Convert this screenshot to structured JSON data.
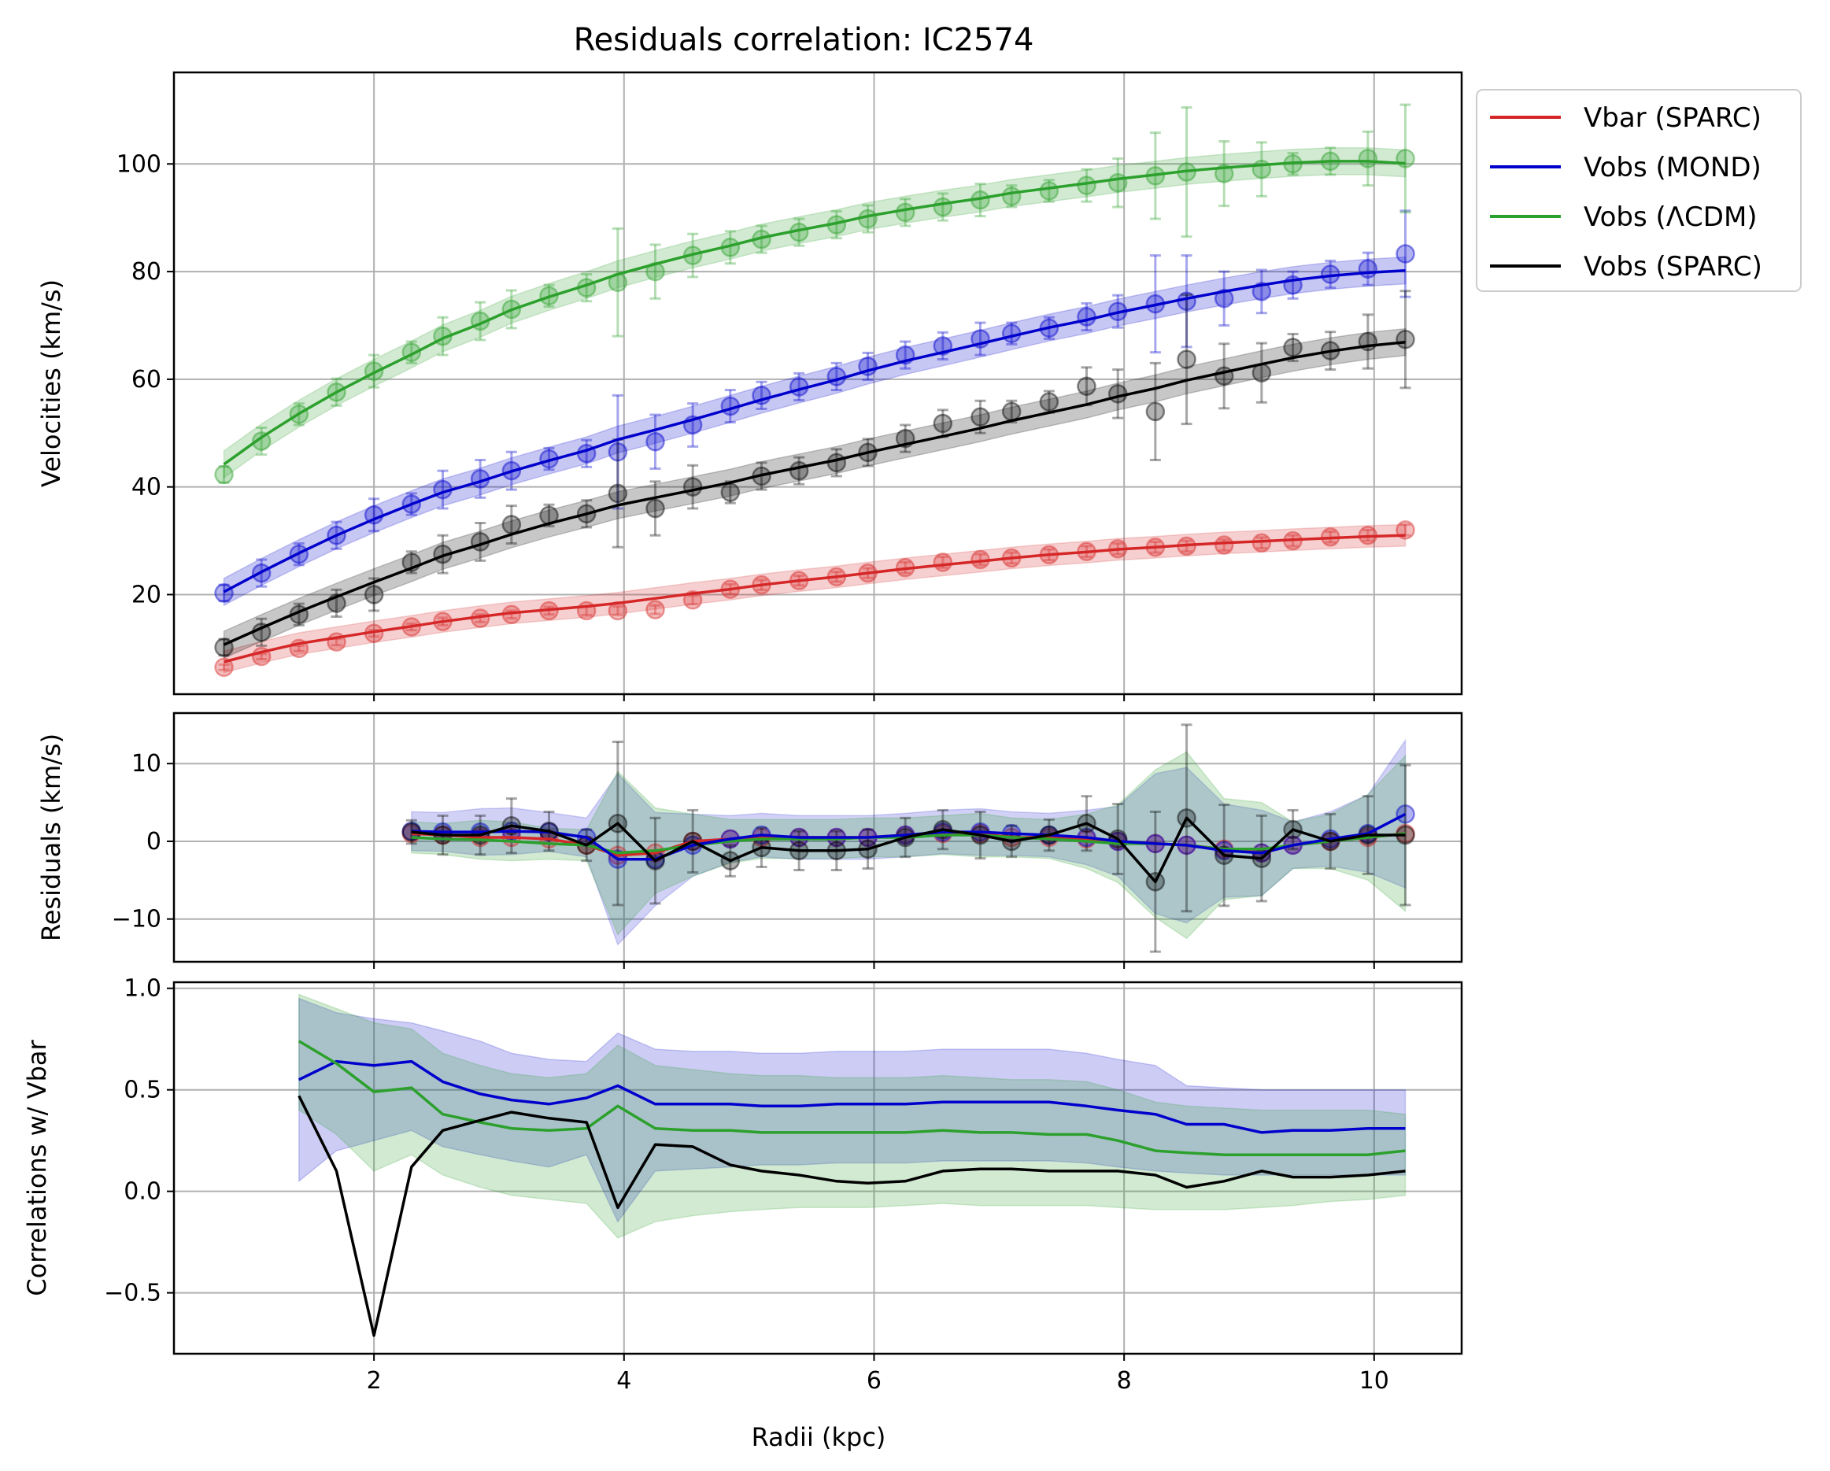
{
  "title": "Residuals correlation: IC2574",
  "xlabel": "Radii (kpc)",
  "colors": {
    "vbar": "#d62728",
    "mond": "#0000cc",
    "lcdm": "#2ca02c",
    "sparc": "#000000"
  },
  "legend": [
    "Vbar (SPARC)",
    "Vobs (MOND)",
    "Vobs (ΛCDM)",
    "Vobs (SPARC)"
  ],
  "chart_data": [
    {
      "type": "line",
      "ylabel": "Velocities (km/s)",
      "xlim": [
        0.4,
        10.7
      ],
      "ylim": [
        1.5,
        117
      ],
      "xticks": [
        2,
        4,
        6,
        8,
        10
      ],
      "yticks": [
        20,
        40,
        60,
        80,
        100
      ],
      "grid": true,
      "legend_position": "outside-right",
      "x": [
        0.8,
        1.1,
        1.4,
        1.7,
        2.0,
        2.3,
        2.55,
        2.85,
        3.1,
        3.4,
        3.7,
        3.95,
        4.25,
        4.55,
        4.85,
        5.1,
        5.4,
        5.7,
        5.95,
        6.25,
        6.55,
        6.85,
        7.1,
        7.4,
        7.7,
        7.95,
        8.25,
        8.5,
        8.8,
        9.1,
        9.35,
        9.65,
        9.95,
        10.25
      ],
      "series": [
        {
          "name": "Vbar (SPARC)",
          "role": "model",
          "values": [
            7.5,
            9.3,
            10.9,
            12.0,
            13.1,
            14.1,
            15.0,
            15.9,
            16.6,
            17.2,
            17.8,
            18.4,
            19.3,
            20.2,
            21.0,
            21.8,
            22.6,
            23.3,
            24.0,
            24.8,
            25.5,
            26.2,
            26.8,
            27.4,
            27.9,
            28.4,
            28.8,
            29.2,
            29.6,
            29.9,
            30.2,
            30.5,
            30.8,
            31.0
          ]
        },
        {
          "name": "Vbar (SPARC)",
          "role": "points",
          "values": [
            6.5,
            8.5,
            10.0,
            11.2,
            12.8,
            14.0,
            15.0,
            15.6,
            16.3,
            17.0,
            17.0,
            17.0,
            17.2,
            19.0,
            21.0,
            21.8,
            22.6,
            23.3,
            24.0,
            25.0,
            26.0,
            26.5,
            26.8,
            27.4,
            28.0,
            28.5,
            28.8,
            29.0,
            29.2,
            29.6,
            30.0,
            30.7,
            31.0,
            32.0
          ]
        },
        {
          "name": "Vobs (MOND)",
          "role": "model",
          "values": [
            20.5,
            24.2,
            27.7,
            31.0,
            34.0,
            36.8,
            39.0,
            41.0,
            42.9,
            44.9,
            46.8,
            48.8,
            50.6,
            52.5,
            54.5,
            56.2,
            58.1,
            59.9,
            61.6,
            63.4,
            65.0,
            66.6,
            68.0,
            69.6,
            71.0,
            72.4,
            73.8,
            75.0,
            76.3,
            77.5,
            78.4,
            79.2,
            79.8,
            80.2
          ]
        },
        {
          "name": "Vobs (MOND)",
          "role": "points",
          "values": [
            20.3,
            24.0,
            27.5,
            31.0,
            34.8,
            36.8,
            39.5,
            41.5,
            43.0,
            45.2,
            46.2,
            46.5,
            48.4,
            51.5,
            55.0,
            57.0,
            58.6,
            60.5,
            62.4,
            64.5,
            66.2,
            67.5,
            68.5,
            69.5,
            71.6,
            72.6,
            74.0,
            74.5,
            75.0,
            76.3,
            77.5,
            79.5,
            80.5,
            83.3
          ]
        },
        {
          "name": "Vobs (ΛCDM)",
          "role": "model",
          "values": [
            44.2,
            49.2,
            53.6,
            57.6,
            61.2,
            64.6,
            67.6,
            70.3,
            72.9,
            75.3,
            77.5,
            79.5,
            81.4,
            83.2,
            84.8,
            86.3,
            87.7,
            89.0,
            90.3,
            91.5,
            92.6,
            93.6,
            94.6,
            95.5,
            96.4,
            97.2,
            98.0,
            98.7,
            99.3,
            99.8,
            100.2,
            100.5,
            100.5,
            100.1
          ]
        },
        {
          "name": "Vobs (ΛCDM)",
          "role": "points",
          "values": [
            42.3,
            48.5,
            53.5,
            57.6,
            61.5,
            65.0,
            68.0,
            70.8,
            73.0,
            75.5,
            77.0,
            78.0,
            80.0,
            83.0,
            84.5,
            86.0,
            87.3,
            88.7,
            89.8,
            91.0,
            92.0,
            93.3,
            94.0,
            95.0,
            96.0,
            96.5,
            97.8,
            98.5,
            98.2,
            99.0,
            100.0,
            100.5,
            101.0,
            101.0
          ]
        },
        {
          "name": "Vobs (SPARC)",
          "role": "model",
          "values": [
            10.7,
            13.8,
            16.8,
            19.6,
            22.3,
            24.9,
            27.2,
            29.3,
            31.2,
            33.2,
            35.0,
            36.6,
            38.0,
            39.4,
            40.8,
            42.2,
            43.6,
            45.0,
            46.4,
            47.9,
            49.4,
            50.9,
            52.3,
            53.8,
            55.3,
            56.8,
            58.3,
            59.8,
            61.3,
            62.8,
            64.0,
            65.2,
            66.2,
            66.9
          ]
        },
        {
          "name": "Vobs (SPARC)",
          "role": "points",
          "values": [
            10.2,
            13.0,
            16.3,
            18.4,
            20.0,
            26.0,
            27.5,
            29.8,
            33.0,
            34.7,
            35.0,
            38.8,
            36.0,
            40.0,
            39.0,
            42.0,
            43.0,
            44.5,
            46.4,
            49.0,
            51.8,
            53.0,
            54.0,
            55.8,
            58.7,
            57.3,
            54.0,
            63.7,
            60.6,
            61.2,
            65.9,
            65.3,
            67.0,
            67.4
          ]
        }
      ],
      "errorbars": {
        "vbar": [
          0.5,
          0.5,
          0.5,
          0.6,
          0.6,
          0.6,
          0.7,
          0.7,
          0.7,
          0.7,
          0.8,
          0.8,
          0.8,
          0.8,
          0.9,
          0.9,
          0.9,
          0.9,
          0.9,
          1.0,
          1.0,
          1.0,
          1.0,
          1.0,
          1.0,
          1.0,
          1.0,
          1.0,
          1.0,
          1.0,
          1.0,
          1.0,
          1.0,
          1.0
        ],
        "mond": [
          1.5,
          2.5,
          2.0,
          2.5,
          3.0,
          2.0,
          3.5,
          3.5,
          3.5,
          2.0,
          2.5,
          10.5,
          5.0,
          4.0,
          3.0,
          2.5,
          2.5,
          2.5,
          2.5,
          2.5,
          2.5,
          3.0,
          2.0,
          2.0,
          2.5,
          3.0,
          9.0,
          8.5,
          5.0,
          4.0,
          2.5,
          2.5,
          3.0,
          8.0
        ],
        "lcdm": [
          1.5,
          2.5,
          2.0,
          2.5,
          3.0,
          2.0,
          3.5,
          3.5,
          3.5,
          2.0,
          2.5,
          10.0,
          5.0,
          4.0,
          3.0,
          2.5,
          2.5,
          2.5,
          2.5,
          2.5,
          2.5,
          3.0,
          2.0,
          2.0,
          3.0,
          4.5,
          8.0,
          12.0,
          6.0,
          5.0,
          2.0,
          2.5,
          5.0,
          10.0
        ],
        "sparc": [
          1.5,
          2.5,
          2.0,
          2.5,
          3.0,
          2.0,
          3.5,
          3.5,
          3.5,
          2.0,
          2.5,
          10.0,
          5.0,
          4.0,
          2.0,
          2.5,
          2.5,
          2.5,
          2.5,
          2.5,
          2.5,
          3.0,
          2.0,
          2.0,
          3.5,
          4.5,
          9.0,
          12.0,
          6.0,
          5.5,
          2.5,
          3.5,
          5.0,
          9.0
        ]
      },
      "bands": {
        "vbar": 2.0,
        "mond": 2.5,
        "lcdm": 2.5,
        "sparc": 2.5
      }
    },
    {
      "type": "line",
      "ylabel": "Residuals (km/s)",
      "xlim": [
        0.4,
        10.7
      ],
      "ylim": [
        -15.5,
        16.5
      ],
      "yticks": [
        -10,
        0,
        10
      ],
      "grid": true,
      "x": [
        2.3,
        2.55,
        2.85,
        3.1,
        3.4,
        3.7,
        3.95,
        4.25,
        4.55,
        4.85,
        5.1,
        5.4,
        5.7,
        5.95,
        6.25,
        6.55,
        6.85,
        7.1,
        7.4,
        7.7,
        7.95,
        8.25,
        8.5,
        8.8,
        9.1,
        9.35,
        9.65,
        9.95,
        10.25
      ],
      "series": [
        {
          "name": "Vbar (SPARC)",
          "values": [
            1.0,
            0.8,
            0.5,
            0.5,
            0.3,
            -0.5,
            -1.8,
            -1.5,
            0.0,
            0.3,
            0.5,
            0.5,
            0.5,
            0.5,
            0.8,
            1.0,
            1.0,
            0.5,
            0.5,
            0.3,
            0.0,
            -0.3,
            -0.5,
            -1.0,
            -1.5,
            -0.5,
            0.0,
            0.5,
            1.0
          ]
        },
        {
          "name": "Vobs (MOND)",
          "values": [
            1.3,
            1.2,
            1.2,
            1.3,
            1.2,
            0.5,
            -2.3,
            -2.3,
            -0.5,
            0.3,
            0.8,
            0.5,
            0.5,
            0.5,
            0.8,
            1.2,
            1.2,
            1.0,
            0.8,
            0.5,
            0.0,
            -0.3,
            -0.5,
            -1.2,
            -1.5,
            -0.5,
            0.3,
            1.0,
            3.5
          ]
        },
        {
          "name": "Vobs (ΛCDM)",
          "values": [
            0.5,
            0.3,
            0.2,
            0.0,
            -0.3,
            -0.5,
            -1.5,
            -1.2,
            -0.5,
            0.0,
            0.3,
            0.3,
            0.3,
            0.5,
            0.5,
            0.8,
            0.8,
            0.5,
            0.3,
            0.0,
            -0.3,
            -0.3,
            -0.5,
            -1.0,
            -1.0,
            -0.5,
            0.0,
            0.5,
            1.0
          ]
        },
        {
          "name": "Vobs (SPARC)",
          "values": [
            1.2,
            0.8,
            0.8,
            2.0,
            1.3,
            -0.5,
            2.3,
            -2.5,
            0.0,
            -2.5,
            -0.8,
            -1.2,
            -1.2,
            -1.0,
            0.5,
            1.5,
            0.8,
            0.0,
            0.8,
            2.3,
            0.3,
            -5.2,
            3.0,
            -1.8,
            -2.2,
            1.5,
            0.0,
            0.8,
            0.8
          ]
        }
      ],
      "bands": {
        "mond": [
          2.5,
          2.5,
          3.0,
          3.0,
          2.5,
          2.5,
          11.0,
          6.0,
          4.0,
          3.0,
          2.8,
          2.8,
          2.8,
          2.8,
          2.8,
          2.8,
          3.0,
          2.8,
          2.8,
          3.5,
          4.5,
          9.0,
          10.0,
          6.0,
          5.5,
          3.0,
          3.5,
          5.0,
          9.5
        ],
        "lcdm": [
          2.0,
          2.0,
          2.5,
          2.5,
          2.0,
          2.0,
          10.5,
          5.5,
          4.0,
          2.8,
          2.5,
          2.5,
          2.5,
          2.5,
          2.5,
          2.5,
          2.8,
          2.5,
          2.5,
          3.5,
          5.0,
          9.5,
          12.0,
          6.5,
          6.0,
          3.0,
          3.5,
          5.5,
          10.0
        ]
      },
      "errorbars_sparc": [
        1.5,
        2.5,
        2.5,
        3.5,
        2.5,
        2.0,
        10.5,
        5.5,
        4.0,
        2.0,
        2.5,
        2.5,
        2.5,
        2.5,
        2.5,
        2.5,
        3.0,
        2.0,
        2.0,
        3.5,
        4.5,
        9.0,
        12.0,
        6.5,
        5.5,
        2.5,
        3.5,
        5.0,
        9.0
      ]
    },
    {
      "type": "line",
      "ylabel": "Correlations w/ Vbar",
      "xlim": [
        0.4,
        10.7
      ],
      "ylim": [
        -0.8,
        1.03
      ],
      "yticks": [
        -0.5,
        0.0,
        0.5,
        1.0
      ],
      "ytick_labels": [
        "−0.5",
        "0.0",
        "0.5",
        "1.0"
      ],
      "grid": true,
      "x": [
        1.4,
        1.7,
        2.0,
        2.3,
        2.55,
        2.85,
        3.1,
        3.4,
        3.7,
        3.95,
        4.25,
        4.55,
        4.85,
        5.1,
        5.4,
        5.7,
        5.95,
        6.25,
        6.55,
        6.85,
        7.1,
        7.4,
        7.7,
        7.95,
        8.25,
        8.5,
        8.8,
        9.1,
        9.35,
        9.65,
        9.95,
        10.25
      ],
      "series": [
        {
          "name": "Vobs (MOND)",
          "values": [
            0.55,
            0.64,
            0.62,
            0.64,
            0.54,
            0.48,
            0.45,
            0.43,
            0.46,
            0.52,
            0.43,
            0.43,
            0.43,
            0.42,
            0.42,
            0.43,
            0.43,
            0.43,
            0.44,
            0.44,
            0.44,
            0.44,
            0.42,
            0.4,
            0.38,
            0.33,
            0.33,
            0.29,
            0.3,
            0.3,
            0.31,
            0.31
          ]
        },
        {
          "name": "Vobs (ΛCDM)",
          "values": [
            0.74,
            0.63,
            0.49,
            0.51,
            0.38,
            0.34,
            0.31,
            0.3,
            0.31,
            0.42,
            0.31,
            0.3,
            0.3,
            0.29,
            0.29,
            0.29,
            0.29,
            0.29,
            0.3,
            0.29,
            0.29,
            0.28,
            0.28,
            0.25,
            0.2,
            0.19,
            0.18,
            0.18,
            0.18,
            0.18,
            0.18,
            0.2
          ]
        },
        {
          "name": "Vobs (SPARC)",
          "values": [
            0.47,
            0.1,
            -0.71,
            0.12,
            0.3,
            0.35,
            0.39,
            0.36,
            0.34,
            -0.08,
            0.23,
            0.22,
            0.13,
            0.1,
            0.08,
            0.05,
            0.04,
            0.05,
            0.1,
            0.11,
            0.11,
            0.1,
            0.1,
            0.1,
            0.08,
            0.02,
            0.05,
            0.1,
            0.07,
            0.07,
            0.08,
            0.1
          ]
        }
      ],
      "bands": {
        "mond_upper": [
          0.95,
          0.88,
          0.85,
          0.83,
          0.79,
          0.74,
          0.68,
          0.65,
          0.64,
          0.78,
          0.7,
          0.69,
          0.69,
          0.68,
          0.68,
          0.69,
          0.69,
          0.69,
          0.7,
          0.7,
          0.7,
          0.7,
          0.68,
          0.65,
          0.62,
          0.52,
          0.51,
          0.5,
          0.5,
          0.5,
          0.5,
          0.5
        ],
        "mond_lower": [
          0.05,
          0.2,
          0.25,
          0.3,
          0.22,
          0.18,
          0.15,
          0.12,
          0.18,
          -0.15,
          0.1,
          0.11,
          0.12,
          0.13,
          0.13,
          0.14,
          0.14,
          0.14,
          0.15,
          0.15,
          0.15,
          0.15,
          0.14,
          0.12,
          0.1,
          0.09,
          0.08,
          0.08,
          0.08,
          0.08,
          0.08,
          0.08
        ],
        "lcdm_upper": [
          0.97,
          0.9,
          0.83,
          0.8,
          0.68,
          0.62,
          0.58,
          0.56,
          0.58,
          0.72,
          0.62,
          0.6,
          0.58,
          0.57,
          0.57,
          0.56,
          0.56,
          0.56,
          0.57,
          0.56,
          0.55,
          0.55,
          0.54,
          0.5,
          0.44,
          0.42,
          0.41,
          0.4,
          0.4,
          0.4,
          0.4,
          0.38
        ],
        "lcdm_lower": [
          0.4,
          0.28,
          0.1,
          0.18,
          0.08,
          0.02,
          -0.02,
          -0.04,
          -0.06,
          -0.23,
          -0.15,
          -0.12,
          -0.1,
          -0.09,
          -0.08,
          -0.08,
          -0.08,
          -0.07,
          -0.06,
          -0.07,
          -0.07,
          -0.07,
          -0.07,
          -0.08,
          -0.09,
          -0.09,
          -0.09,
          -0.08,
          -0.07,
          -0.05,
          -0.04,
          -0.02
        ]
      }
    }
  ]
}
